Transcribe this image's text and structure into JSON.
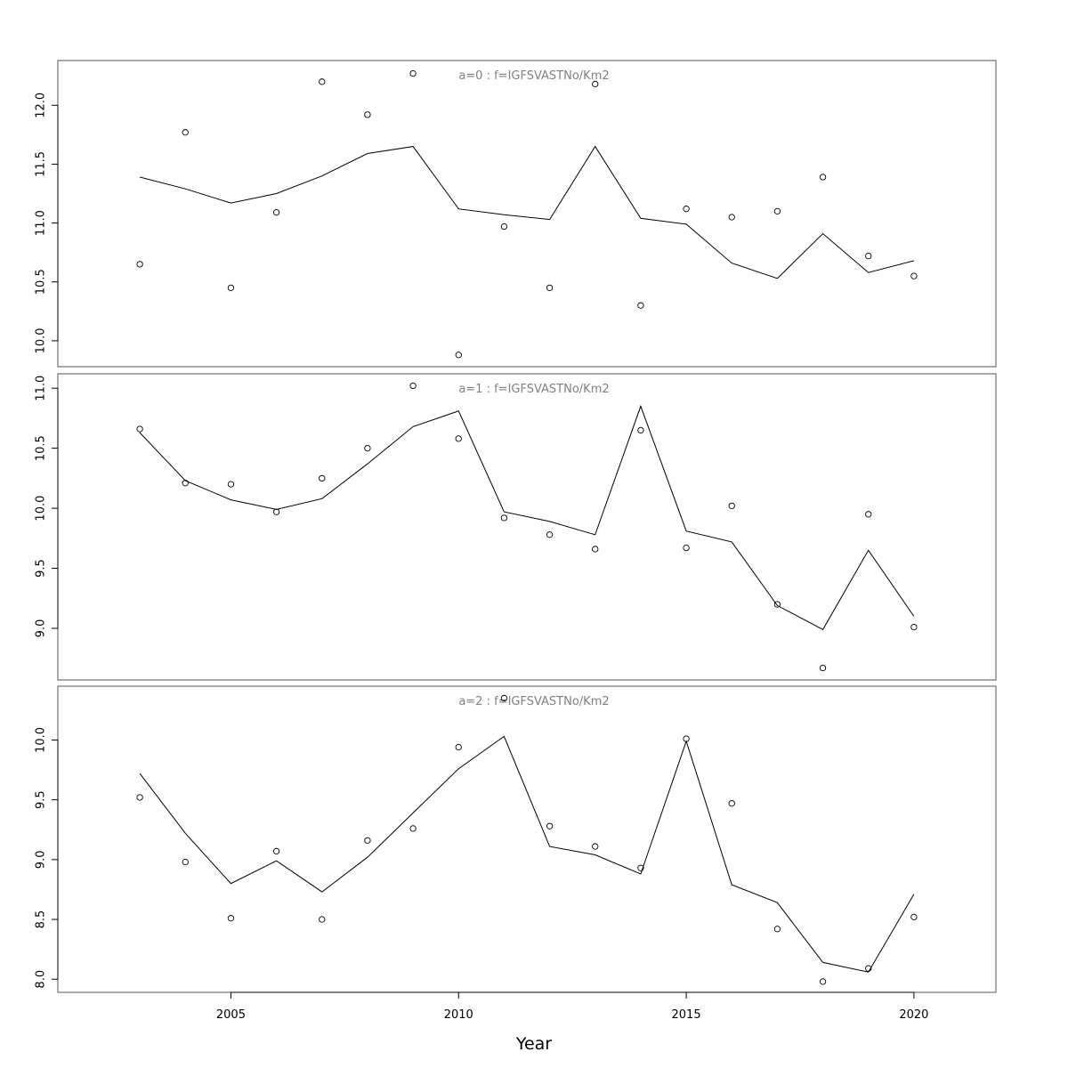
{
  "chart_data": {
    "type": "line",
    "xlabel": "Year",
    "x_ticks": [
      2005,
      2010,
      2015,
      2020
    ],
    "xlim": [
      2001.2,
      2021.8
    ],
    "years": [
      2003,
      2004,
      2005,
      2006,
      2007,
      2008,
      2009,
      2010,
      2011,
      2012,
      2013,
      2014,
      2015,
      2016,
      2017,
      2018,
      2019,
      2020
    ],
    "panels": [
      {
        "title": "a=0  :  f=IGFSVASTNo/Km2",
        "ylim": [
          9.78,
          12.38
        ],
        "y_ticks": [
          10.0,
          10.5,
          11.0,
          11.5,
          12.0
        ],
        "y_tick_labels": [
          "10.0",
          "10.5",
          "11.0",
          "11.5",
          "12.0"
        ],
        "observed": [
          10.65,
          11.77,
          10.45,
          11.09,
          12.2,
          11.92,
          12.27,
          9.88,
          10.97,
          10.45,
          12.18,
          10.3,
          11.12,
          11.05,
          11.1,
          11.39,
          10.72,
          10.55
        ],
        "fitted": [
          11.39,
          11.29,
          11.17,
          11.25,
          11.4,
          11.59,
          11.65,
          11.12,
          11.07,
          11.03,
          11.65,
          11.04,
          10.99,
          10.66,
          10.53,
          10.91,
          10.58,
          10.68
        ]
      },
      {
        "title": "a=1  :  f=IGFSVASTNo/Km2",
        "ylim": [
          8.57,
          11.12
        ],
        "y_ticks": [
          9.0,
          9.5,
          10.0,
          10.5,
          11.0
        ],
        "y_tick_labels": [
          "9.0",
          "9.5",
          "10.0",
          "10.5",
          "11.0"
        ],
        "observed": [
          10.66,
          10.21,
          10.2,
          9.97,
          10.25,
          10.5,
          11.02,
          10.58,
          9.92,
          9.78,
          9.66,
          10.65,
          9.67,
          10.02,
          9.2,
          8.67,
          9.95,
          9.01
        ],
        "fitted": [
          10.63,
          10.23,
          10.07,
          9.99,
          10.08,
          10.37,
          10.68,
          10.81,
          9.97,
          9.89,
          9.78,
          10.85,
          9.81,
          9.72,
          9.19,
          8.99,
          9.65,
          9.1
        ]
      },
      {
        "title": "a=2  :  f=IGFSVASTNo/Km2",
        "ylim": [
          7.89,
          10.45
        ],
        "y_ticks": [
          8.0,
          8.5,
          9.0,
          9.5,
          10.0
        ],
        "y_tick_labels": [
          "8.0",
          "8.5",
          "9.0",
          "9.5",
          "10.0"
        ],
        "observed": [
          9.52,
          8.98,
          8.51,
          9.07,
          8.5,
          9.16,
          9.26,
          9.94,
          10.35,
          9.28,
          9.11,
          8.93,
          10.01,
          9.47,
          8.42,
          7.98,
          8.09,
          8.52
        ],
        "fitted": [
          9.72,
          9.22,
          8.8,
          8.99,
          8.73,
          9.02,
          9.39,
          9.76,
          10.03,
          9.11,
          9.04,
          8.88,
          9.99,
          8.79,
          8.64,
          8.14,
          8.06,
          8.71
        ]
      }
    ]
  }
}
